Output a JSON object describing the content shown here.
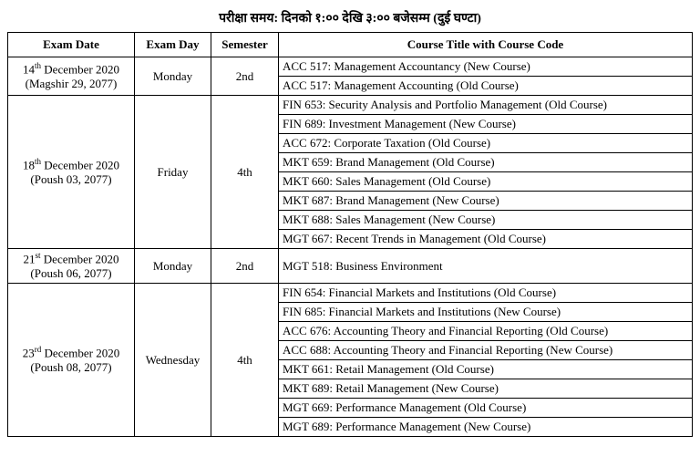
{
  "header": "परीक्षा समय: दिनको १:०० देखि ३:०० बजेसम्म (दुई घण्टा)",
  "columns": [
    "Exam Date",
    "Exam Day",
    "Semester",
    "Course Title with Course Code"
  ],
  "rows": [
    {
      "date_primary_pre": "14",
      "date_primary_sup": "th",
      "date_primary_post": " December 2020",
      "date_secondary": "(Magshir 29, 2077)",
      "day": "Monday",
      "semester": "2nd",
      "courses": [
        "ACC 517: Management Accountancy (New Course)",
        "ACC 517: Management Accounting (Old Course)"
      ]
    },
    {
      "date_primary_pre": "18",
      "date_primary_sup": "th",
      "date_primary_post": " December 2020",
      "date_secondary": "(Poush 03, 2077)",
      "day": "Friday",
      "semester": "4th",
      "courses": [
        "FIN 653: Security Analysis and Portfolio Management (Old Course)",
        "FIN 689: Investment Management (New Course)",
        "ACC 672: Corporate Taxation (Old Course)",
        "MKT 659: Brand Management (Old Course)",
        "MKT 660: Sales Management (Old Course)",
        "MKT 687: Brand Management (New Course)",
        "MKT 688: Sales Management (New Course)",
        "MGT 667: Recent Trends in Management (Old Course)"
      ]
    },
    {
      "date_primary_pre": "21",
      "date_primary_sup": "st",
      "date_primary_post": " December 2020",
      "date_secondary": "(Poush 06, 2077)",
      "day": "Monday",
      "semester": "2nd",
      "courses": [
        "MGT 518: Business Environment"
      ]
    },
    {
      "date_primary_pre": "23",
      "date_primary_sup": "rd",
      "date_primary_post": " December 2020",
      "date_secondary": "(Poush 08, 2077)",
      "day": "Wednesday",
      "semester": "4th",
      "courses": [
        "FIN 654: Financial Markets and Institutions (Old Course)",
        "FIN 685: Financial Markets and Institutions (New Course)",
        "ACC 676: Accounting Theory and Financial Reporting (Old Course)",
        "ACC 688: Accounting Theory and Financial Reporting (New Course)",
        "MKT 661: Retail Management (Old Course)",
        "MKT 689: Retail Management (New Course)",
        "MGT 669: Performance Management (Old Course)",
        "MGT 689: Performance Management (New Course)"
      ]
    }
  ]
}
